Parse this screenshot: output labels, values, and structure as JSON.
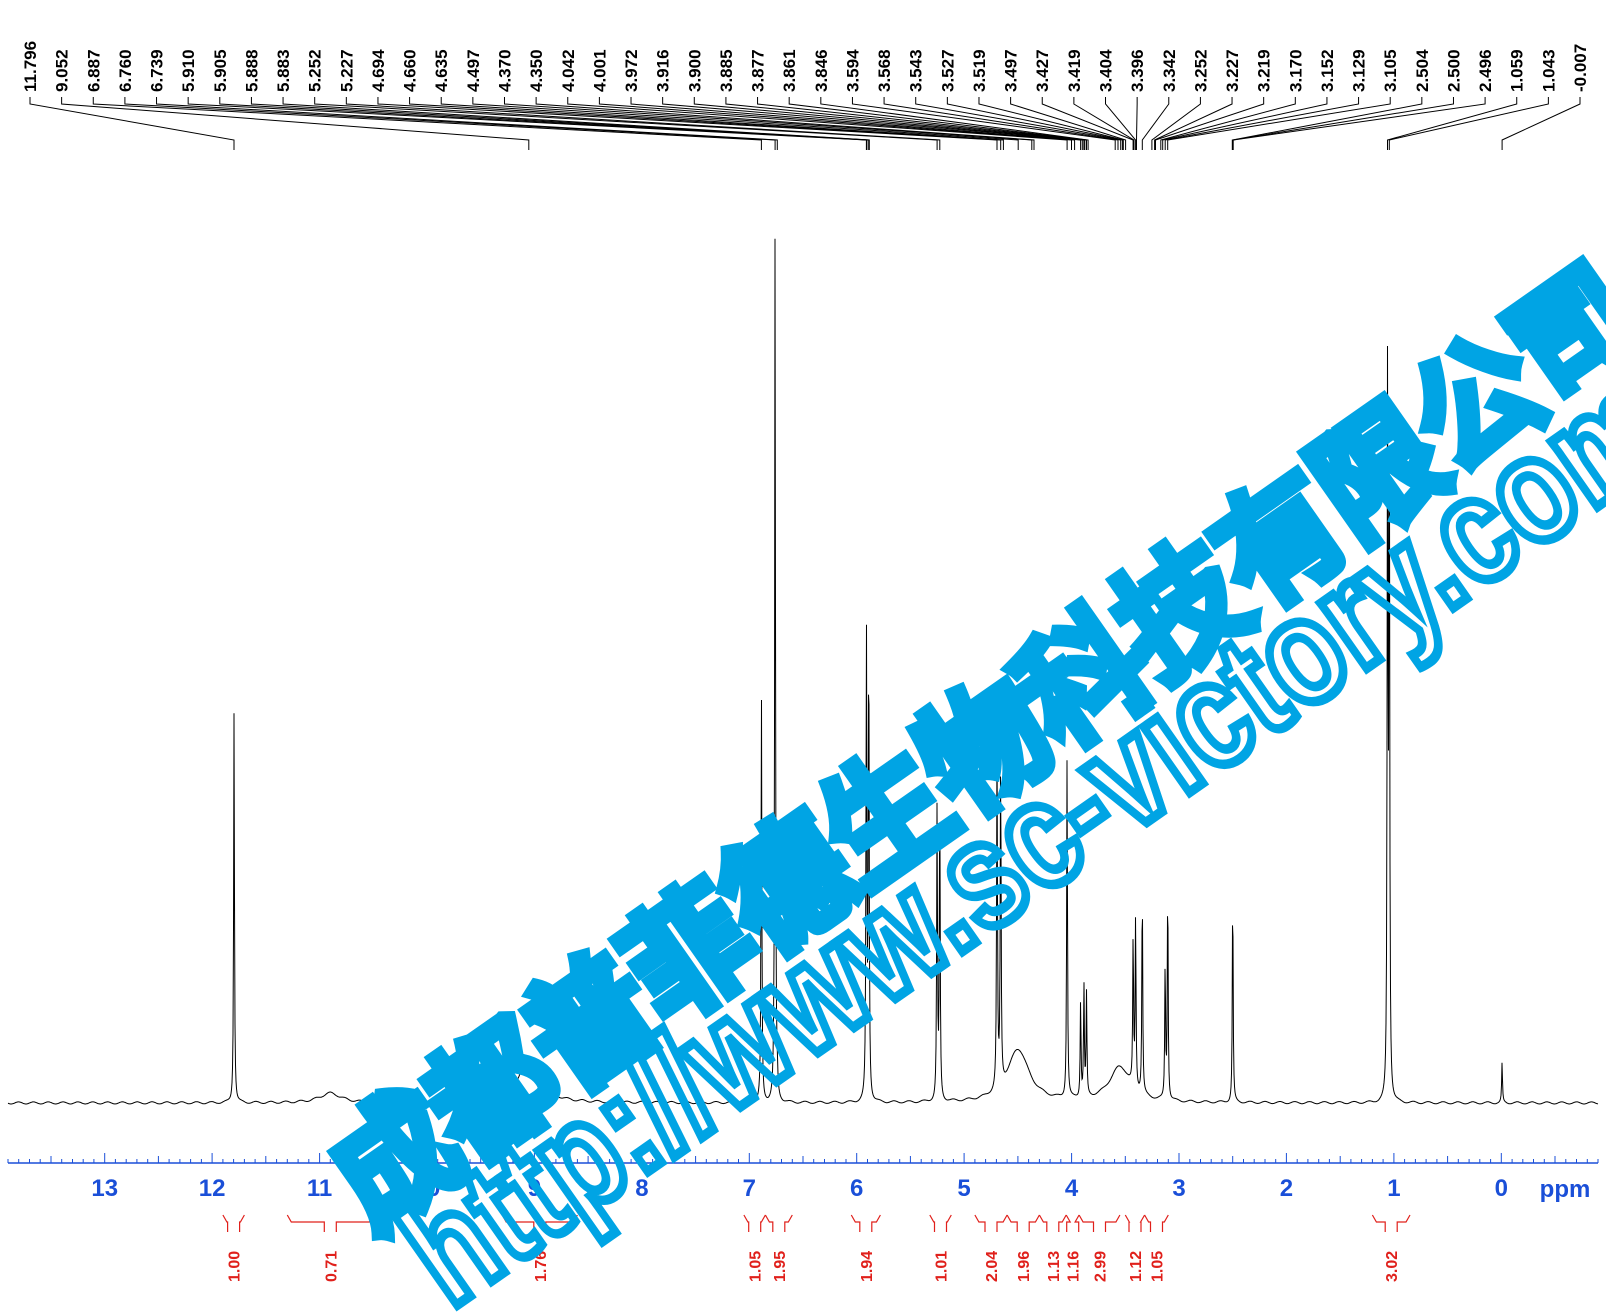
{
  "chart_data": {
    "type": "line",
    "title": "",
    "xlabel": "ppm",
    "ylabel": "",
    "xlim": [
      13.9,
      -0.9
    ],
    "x_reversed": true,
    "grid": false,
    "x_ticks": [
      13,
      12,
      11,
      10,
      9,
      8,
      7,
      6,
      5,
      4,
      3,
      2,
      1,
      0
    ],
    "peak_labels": [
      "11.796",
      "9.052",
      "6.887",
      "6.760",
      "6.739",
      "5.910",
      "5.905",
      "5.888",
      "5.883",
      "5.252",
      "5.227",
      "4.694",
      "4.660",
      "4.635",
      "4.497",
      "4.370",
      "4.350",
      "4.042",
      "4.001",
      "3.972",
      "3.916",
      "3.900",
      "3.885",
      "3.877",
      "3.861",
      "3.846",
      "3.594",
      "3.568",
      "3.543",
      "3.527",
      "3.519",
      "3.497",
      "3.427",
      "3.419",
      "3.404",
      "3.396",
      "3.342",
      "3.252",
      "3.227",
      "3.219",
      "3.170",
      "3.152",
      "3.129",
      "3.105",
      "2.504",
      "2.500",
      "2.496",
      "1.059",
      "1.043",
      "-0.007"
    ],
    "peak_shifts": [
      11.796,
      9.052,
      6.887,
      6.76,
      6.739,
      5.91,
      5.905,
      5.888,
      5.883,
      5.252,
      5.227,
      4.694,
      4.66,
      4.635,
      4.497,
      4.37,
      4.35,
      4.042,
      4.001,
      3.972,
      3.916,
      3.9,
      3.885,
      3.877,
      3.861,
      3.846,
      3.594,
      3.568,
      3.543,
      3.527,
      3.519,
      3.497,
      3.427,
      3.419,
      3.404,
      3.396,
      3.342,
      3.252,
      3.227,
      3.219,
      3.17,
      3.152,
      3.129,
      3.105,
      2.504,
      2.5,
      2.496,
      1.059,
      1.043,
      -0.007
    ],
    "integrals": [
      {
        "from": 11.9,
        "to": 11.7,
        "value": "1.00"
      },
      {
        "from": 11.3,
        "to": 10.5,
        "value": "0.71"
      },
      {
        "from": 9.3,
        "to": 8.6,
        "value": "1.76"
      },
      {
        "from": 7.05,
        "to": 6.85,
        "value": "1.05"
      },
      {
        "from": 6.85,
        "to": 6.6,
        "value": "1.95"
      },
      {
        "from": 6.05,
        "to": 5.78,
        "value": "1.94"
      },
      {
        "from": 5.32,
        "to": 5.12,
        "value": "1.01"
      },
      {
        "from": 4.9,
        "to": 4.6,
        "value": "2.04"
      },
      {
        "from": 4.6,
        "to": 4.3,
        "value": "1.96"
      },
      {
        "from": 4.3,
        "to": 4.05,
        "value": "1.13"
      },
      {
        "from": 4.05,
        "to": 3.93,
        "value": "1.16"
      },
      {
        "from": 3.93,
        "to": 3.55,
        "value": "2.99"
      },
      {
        "from": 3.5,
        "to": 3.32,
        "value": "1.12"
      },
      {
        "from": 3.32,
        "to": 3.1,
        "value": "1.05"
      },
      {
        "from": 1.2,
        "to": 0.85,
        "value": "3.02"
      }
    ],
    "signals": [
      {
        "shift": 11.796,
        "intensity": 0.445
      },
      {
        "shift": 10.9,
        "intensity": 0.011,
        "broad": true
      },
      {
        "shift": 9.052,
        "intensity": 0.048,
        "broad": true
      },
      {
        "shift": 6.887,
        "intensity": 0.465
      },
      {
        "shift": 6.76,
        "intensity": 0.995
      },
      {
        "shift": 6.739,
        "intensity": 0.015
      },
      {
        "shift": 5.91,
        "intensity": 0.545
      },
      {
        "shift": 5.888,
        "intensity": 0.55
      },
      {
        "shift": 5.252,
        "intensity": 0.335
      },
      {
        "shift": 5.227,
        "intensity": 0.345
      },
      {
        "shift": 4.694,
        "intensity": 0.405
      },
      {
        "shift": 4.66,
        "intensity": 0.385
      },
      {
        "shift": 4.497,
        "intensity": 0.06,
        "broad": true
      },
      {
        "shift": 4.042,
        "intensity": 0.39
      },
      {
        "shift": 3.916,
        "intensity": 0.11
      },
      {
        "shift": 3.885,
        "intensity": 0.125
      },
      {
        "shift": 3.861,
        "intensity": 0.115
      },
      {
        "shift": 3.55,
        "intensity": 0.04,
        "broad": true
      },
      {
        "shift": 3.427,
        "intensity": 0.17
      },
      {
        "shift": 3.404,
        "intensity": 0.195
      },
      {
        "shift": 3.342,
        "intensity": 0.24
      },
      {
        "shift": 3.129,
        "intensity": 0.155
      },
      {
        "shift": 3.105,
        "intensity": 0.25
      },
      {
        "shift": 2.5,
        "intensity": 0.245
      },
      {
        "shift": 1.059,
        "intensity": 0.805
      },
      {
        "shift": 1.043,
        "intensity": 0.82
      },
      {
        "shift": -0.007,
        "intensity": 0.045
      }
    ]
  },
  "watermark": {
    "line1": "成都普菲德生物科技有限公司",
    "line2": "http://www.sc-victory.com",
    "color": "#00a4e4"
  },
  "colors": {
    "axis": "#1a4fd8",
    "integral": "#e0201b",
    "spectrum": "#000000"
  }
}
